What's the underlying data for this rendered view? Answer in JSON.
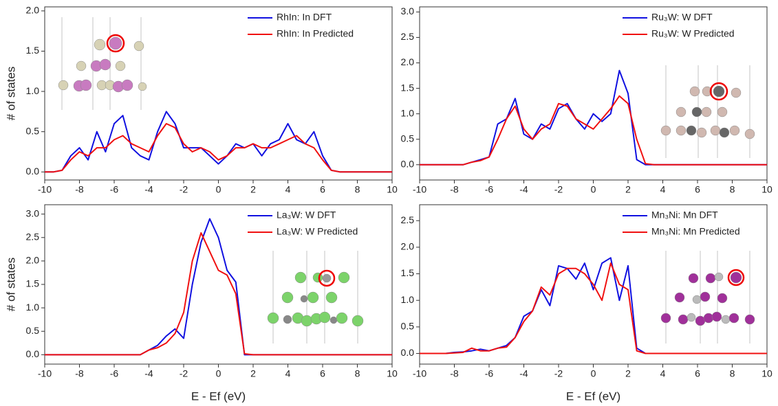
{
  "chart_data": [
    {
      "type": "line",
      "ylabel": "# of states",
      "xlim": [
        -10,
        10
      ],
      "ylim": [
        -0.1,
        2.05
      ],
      "xticks": [
        -10,
        -8,
        -6,
        -4,
        -2,
        0,
        2,
        4,
        6,
        8,
        10
      ],
      "yticks": [
        {
          "value": 0,
          "label": "0.0"
        },
        {
          "value": 0.5,
          "label": "0.5"
        },
        {
          "value": 1,
          "label": "1.0"
        },
        {
          "value": 1.5,
          "label": "1.5"
        },
        {
          "value": 2,
          "label": "2.0"
        }
      ],
      "legend": "upper right",
      "x": [
        -10,
        -9.5,
        -9,
        -8.5,
        -8,
        -7.5,
        -7,
        -6.5,
        -6,
        -5.5,
        -5,
        -4.5,
        -4,
        -3.5,
        -3,
        -2.5,
        -2,
        -1.5,
        -1,
        -0.5,
        0,
        0.5,
        1,
        1.5,
        2,
        2.5,
        3,
        3.5,
        4,
        4.5,
        5,
        5.5,
        6,
        6.5,
        7,
        7.5,
        8,
        8.5,
        9,
        9.5,
        10
      ],
      "series": [
        {
          "name": "RhIn: In DFT",
          "color": "#1010e0",
          "values": [
            0,
            0,
            0.02,
            0.2,
            0.3,
            0.15,
            0.5,
            0.25,
            0.6,
            0.7,
            0.3,
            0.2,
            0.15,
            0.5,
            0.75,
            0.6,
            0.3,
            0.3,
            0.3,
            0.2,
            0.1,
            0.2,
            0.35,
            0.3,
            0.35,
            0.2,
            0.35,
            0.4,
            0.6,
            0.4,
            0.35,
            0.5,
            0.2,
            0.02,
            0,
            0,
            0,
            0,
            0,
            0,
            0
          ]
        },
        {
          "name": "RhIn: In Predicted",
          "color": "#f01010",
          "values": [
            0,
            0,
            0.02,
            0.15,
            0.25,
            0.2,
            0.3,
            0.3,
            0.4,
            0.45,
            0.35,
            0.3,
            0.25,
            0.45,
            0.6,
            0.55,
            0.35,
            0.25,
            0.3,
            0.25,
            0.15,
            0.2,
            0.3,
            0.3,
            0.35,
            0.3,
            0.3,
            0.35,
            0.4,
            0.45,
            0.35,
            0.3,
            0.15,
            0.02,
            0,
            0,
            0,
            0,
            0,
            0,
            0
          ]
        }
      ]
    },
    {
      "type": "line",
      "xlim": [
        -10,
        10
      ],
      "ylim": [
        -0.3,
        3.1
      ],
      "xticks": [
        -10,
        -8,
        -6,
        -4,
        -2,
        0,
        2,
        4,
        6,
        8,
        10
      ],
      "yticks": [
        {
          "value": 0,
          "label": "0.0"
        },
        {
          "value": 0.5,
          "label": "0.5"
        },
        {
          "value": 1,
          "label": "1.0"
        },
        {
          "value": 1.5,
          "label": "1.5"
        },
        {
          "value": 2,
          "label": "2.0"
        },
        {
          "value": 2.5,
          "label": "2.5"
        },
        {
          "value": 3,
          "label": "3.0"
        }
      ],
      "legend": "upper right",
      "x": [
        -10,
        -9.5,
        -9,
        -8.5,
        -8,
        -7.5,
        -7,
        -6.5,
        -6,
        -5.5,
        -5,
        -4.5,
        -4,
        -3.5,
        -3,
        -2.5,
        -2,
        -1.5,
        -1,
        -0.5,
        0,
        0.5,
        1,
        1.5,
        2,
        2.5,
        3,
        3.5,
        4,
        4.5,
        5,
        5.5,
        6,
        6.5,
        7,
        7.5,
        8,
        8.5,
        9,
        9.5,
        10
      ],
      "series": [
        {
          "name": "Ru₃W: W DFT",
          "color": "#1010e0",
          "values": [
            0,
            0,
            0,
            0,
            0,
            0,
            0.05,
            0.1,
            0.15,
            0.8,
            0.9,
            1.3,
            0.6,
            0.5,
            0.8,
            0.7,
            1.1,
            1.2,
            0.9,
            0.7,
            1.0,
            0.85,
            1.0,
            1.85,
            1.4,
            0.1,
            0,
            0,
            0,
            0,
            0,
            0,
            0,
            0,
            0,
            0,
            0,
            0,
            0,
            0,
            0
          ]
        },
        {
          "name": "Ru₃W: W Predicted",
          "color": "#f01010",
          "values": [
            0,
            0,
            0,
            0,
            0,
            0,
            0.05,
            0.08,
            0.15,
            0.5,
            0.9,
            1.15,
            0.7,
            0.5,
            0.7,
            0.8,
            1.2,
            1.15,
            0.9,
            0.8,
            0.7,
            0.9,
            1.1,
            1.35,
            1.2,
            0.5,
            0.02,
            0,
            0,
            0,
            0,
            0,
            0,
            0,
            0,
            0,
            0,
            0,
            0,
            0,
            0
          ]
        }
      ]
    },
    {
      "type": "line",
      "xlabel": "E - Ef (eV)",
      "ylabel": "# of states",
      "xlim": [
        -10,
        10
      ],
      "ylim": [
        -0.2,
        3.2
      ],
      "xticks": [
        -10,
        -8,
        -6,
        -4,
        -2,
        0,
        2,
        4,
        6,
        8,
        10
      ],
      "yticks": [
        {
          "value": 0,
          "label": "0.0"
        },
        {
          "value": 0.5,
          "label": "0.5"
        },
        {
          "value": 1,
          "label": "1.0"
        },
        {
          "value": 1.5,
          "label": "1.5"
        },
        {
          "value": 2,
          "label": "2.0"
        },
        {
          "value": 2.5,
          "label": "2.5"
        },
        {
          "value": 3,
          "label": "3.0"
        }
      ],
      "legend": "upper right",
      "x": [
        -10,
        -9.5,
        -9,
        -8.5,
        -8,
        -7.5,
        -7,
        -6.5,
        -6,
        -5.5,
        -5,
        -4.5,
        -4,
        -3.5,
        -3,
        -2.5,
        -2,
        -1.5,
        -1,
        -0.5,
        0,
        0.5,
        1,
        1.5,
        2,
        2.5,
        3,
        3.5,
        4,
        4.5,
        5,
        5.5,
        6,
        6.5,
        7,
        7.5,
        8,
        8.5,
        9,
        9.5,
        10
      ],
      "series": [
        {
          "name": "La₃W: W DFT",
          "color": "#1010e0",
          "values": [
            0,
            0,
            0,
            0,
            0,
            0,
            0,
            0,
            0,
            0,
            0,
            0,
            0.1,
            0.2,
            0.4,
            0.55,
            0.35,
            1.5,
            2.4,
            2.9,
            2.5,
            1.8,
            1.55,
            0,
            0,
            0,
            0,
            0,
            0,
            0,
            0,
            0,
            0,
            0,
            0,
            0,
            0,
            0,
            0,
            0,
            0
          ]
        },
        {
          "name": "La₃W: W Predicted",
          "color": "#f01010",
          "values": [
            0,
            0,
            0,
            0,
            0,
            0,
            0,
            0,
            0,
            0,
            0,
            0,
            0.1,
            0.15,
            0.25,
            0.45,
            0.9,
            2.0,
            2.6,
            2.2,
            1.8,
            1.7,
            1.3,
            0.02,
            0,
            0,
            0,
            0,
            0,
            0,
            0,
            0,
            0,
            0,
            0,
            0,
            0,
            0,
            0,
            0,
            0
          ]
        }
      ]
    },
    {
      "type": "line",
      "xlabel": "E - Ef (eV)",
      "xlim": [
        -10,
        10
      ],
      "ylim": [
        -0.2,
        2.8
      ],
      "xticks": [
        -10,
        -8,
        -6,
        -4,
        -2,
        0,
        2,
        4,
        6,
        8,
        10
      ],
      "yticks": [
        {
          "value": 0,
          "label": "0.0"
        },
        {
          "value": 0.5,
          "label": "0.5"
        },
        {
          "value": 1,
          "label": "1.0"
        },
        {
          "value": 1.5,
          "label": "1.5"
        },
        {
          "value": 2,
          "label": "2.0"
        },
        {
          "value": 2.5,
          "label": "2.5"
        }
      ],
      "legend": "upper right",
      "x": [
        -10,
        -9.5,
        -9,
        -8.5,
        -8,
        -7.5,
        -7,
        -6.5,
        -6,
        -5.5,
        -5,
        -4.5,
        -4,
        -3.5,
        -3,
        -2.5,
        -2,
        -1.5,
        -1,
        -0.5,
        0,
        0.5,
        1,
        1.5,
        2,
        2.5,
        3,
        3.5,
        4,
        4.5,
        5,
        5.5,
        6,
        6.5,
        7,
        7.5,
        8,
        8.5,
        9,
        9.5,
        10
      ],
      "series": [
        {
          "name": "Mn₃Ni: Mn DFT",
          "color": "#1010e0",
          "values": [
            0,
            0,
            0,
            0,
            0.02,
            0.03,
            0.05,
            0.08,
            0.05,
            0.1,
            0.15,
            0.3,
            0.7,
            0.8,
            1.2,
            0.9,
            1.65,
            1.6,
            1.4,
            1.7,
            1.2,
            1.7,
            1.8,
            1.0,
            1.65,
            0.1,
            0,
            0,
            0,
            0,
            0,
            0,
            0,
            0,
            0,
            0,
            0,
            0,
            0,
            0,
            0
          ]
        },
        {
          "name": "Mn₃Ni: Mn Predicted",
          "color": "#f01010",
          "values": [
            0,
            0,
            0,
            0,
            0.01,
            0.02,
            0.1,
            0.05,
            0.05,
            0.1,
            0.12,
            0.3,
            0.6,
            0.8,
            1.25,
            1.1,
            1.5,
            1.6,
            1.6,
            1.5,
            1.3,
            1.0,
            1.7,
            1.3,
            1.2,
            0.05,
            0,
            0,
            0,
            0,
            0,
            0,
            0,
            0,
            0,
            0,
            0,
            0,
            0,
            0,
            0
          ]
        }
      ]
    }
  ]
}
